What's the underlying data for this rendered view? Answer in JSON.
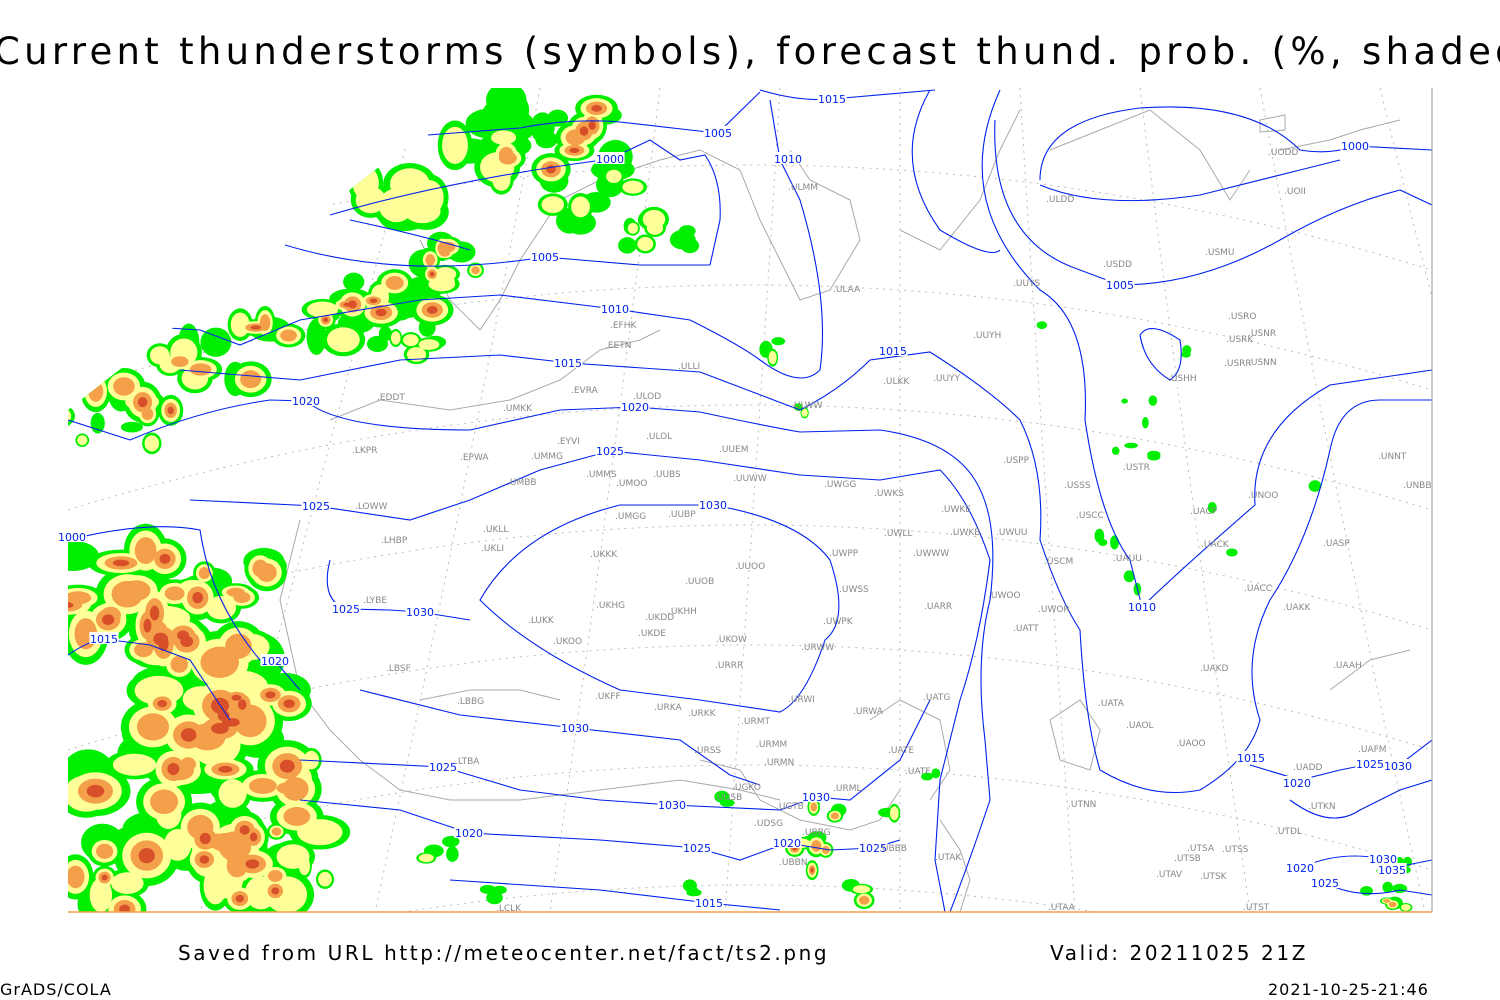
{
  "title": "Current thunderstorms (symbols), forecast thund. prob. (%, shaded)",
  "footer": {
    "saved_from": "Saved from URL http://meteocenter.net/fact/ts2.png",
    "valid": "Valid: 20211025 21Z",
    "software": "GrADS/COLA",
    "timestamp": "2021-10-25-21:46"
  },
  "colors": {
    "prob_low": "#00ee00",
    "prob_mid": "#ffff99",
    "prob_high": "#f4a04a",
    "prob_max": "#d8502a",
    "isobar": "#0022ee",
    "coastline": "#aaaaaa"
  },
  "isobar_labels": [
    "1015",
    "1005",
    "1000",
    "1010",
    "1005",
    "1010",
    "1015",
    "1015",
    "1020",
    "1020",
    "1025",
    "1025",
    "1030",
    "1030",
    "1025",
    "1015",
    "1020",
    "1030",
    "1025",
    "1030",
    "1030",
    "1020",
    "1025",
    "1020",
    "1025",
    "1015",
    "1000",
    "1005",
    "1010",
    "1015",
    "1025",
    "1030",
    "1020",
    "1020",
    "1030",
    "1035",
    "1025",
    "1000"
  ],
  "stations": [
    "ULMM",
    "ULAA",
    "EFHK",
    "EETN",
    "ULLI",
    "EVRA",
    "ULOD",
    "ULWW",
    "ULKK",
    "UUYY",
    "UUYH",
    "UUYS",
    "ULDD",
    "USDD",
    "USMU",
    "UODD",
    "UOII",
    "EDDT",
    "UMKK",
    "EYVI",
    "ULOL",
    "UUEM",
    "EPWA",
    "UMMG",
    "LKPR",
    "UMMS",
    "UUBS",
    "UMOO",
    "UUWW",
    "UWGG",
    "UWKS",
    "UMBB",
    "LOWW",
    "UWKE",
    "UWKB",
    "UWUU",
    "USPP",
    "USSS",
    "USCC",
    "USCM",
    "UACP",
    "UNOO",
    "UNNT",
    "UNBB",
    "UASP",
    "UACK",
    "UAUU",
    "UWLL",
    "UWWW",
    "UWPP",
    "UKLL",
    "UKLI",
    "LHBP",
    "UUBP",
    "UMGG",
    "UKKK",
    "UUOO",
    "UUOB",
    "UWSS",
    "UARR",
    "UWOO",
    "UWOR",
    "UATT",
    "UACC",
    "UAKK",
    "LYBE",
    "LUKK",
    "UKHG",
    "UKDD",
    "UKHH",
    "UKDE",
    "UKOO",
    "UKOW",
    "UWPK",
    "URWW",
    "URRR",
    "LBSF",
    "UAKD",
    "UAAH",
    "UKFF",
    "URKA",
    "URKK",
    "URWI",
    "URMT",
    "URWA",
    "UATG",
    "LBBG",
    "UATA",
    "UAOL",
    "UAOO",
    "URSS",
    "URMM",
    "URMN",
    "UATE",
    "UATF",
    "LTBA",
    "URML",
    "UGKO",
    "UGSB",
    "UGTB",
    "UTNN",
    "UADD",
    "UAFM",
    "UTAA",
    "UTSA",
    "UTSS",
    "UTSB",
    "UTAV",
    "UTSK",
    "UTST",
    "UTDL",
    "UTKN",
    "UDSG",
    "UBBG",
    "UBBB",
    "UBBN",
    "UTAK",
    "LCLK",
    "USRK",
    "USRR",
    "USNN",
    "USNR",
    "USRO",
    "USHH",
    "USTR"
  ]
}
